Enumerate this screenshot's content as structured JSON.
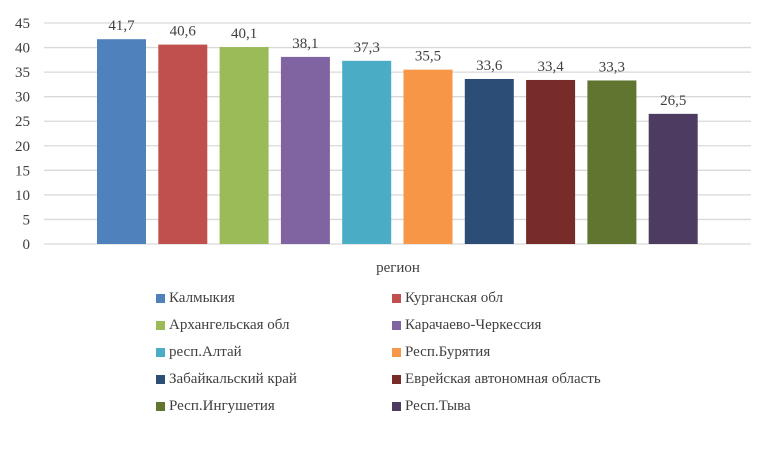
{
  "chart_data": {
    "type": "bar",
    "title": "",
    "xlabel": "регион",
    "ylabel": "",
    "ylim": [
      0,
      45
    ],
    "yticks": [
      0,
      5,
      10,
      15,
      20,
      25,
      30,
      35,
      40,
      45
    ],
    "grid": true,
    "legend_position": "bottom",
    "series": [
      {
        "name": "Калмыкия",
        "value": 41.7,
        "label": "41,7",
        "color": "#4F81BD"
      },
      {
        "name": "Курганская обл",
        "value": 40.6,
        "label": "40,6",
        "color": "#C0504D"
      },
      {
        "name": "Архангельская обл",
        "value": 40.1,
        "label": "40,1",
        "color": "#9BBB59"
      },
      {
        "name": "Карачаево-Черкессия",
        "value": 38.1,
        "label": "38,1",
        "color": "#8064A2"
      },
      {
        "name": "респ.Алтай",
        "value": 37.3,
        "label": "37,3",
        "color": "#4BACC6"
      },
      {
        "name": "Респ.Бурятия",
        "value": 35.5,
        "label": "35,5",
        "color": "#F79646"
      },
      {
        "name": "Забайкальский край",
        "value": 33.6,
        "label": "33,6",
        "color": "#2C4D75"
      },
      {
        "name": "Еврейская автономная область",
        "value": 33.4,
        "label": "33,4",
        "color": "#772C2A"
      },
      {
        "name": "Респ.Ингушетия",
        "value": 33.3,
        "label": "33,3",
        "color": "#5F7530"
      },
      {
        "name": "Респ.Тыва",
        "value": 26.5,
        "label": "26,5",
        "color": "#4D3B62"
      }
    ],
    "gridline_color": "#D9D9D9"
  }
}
